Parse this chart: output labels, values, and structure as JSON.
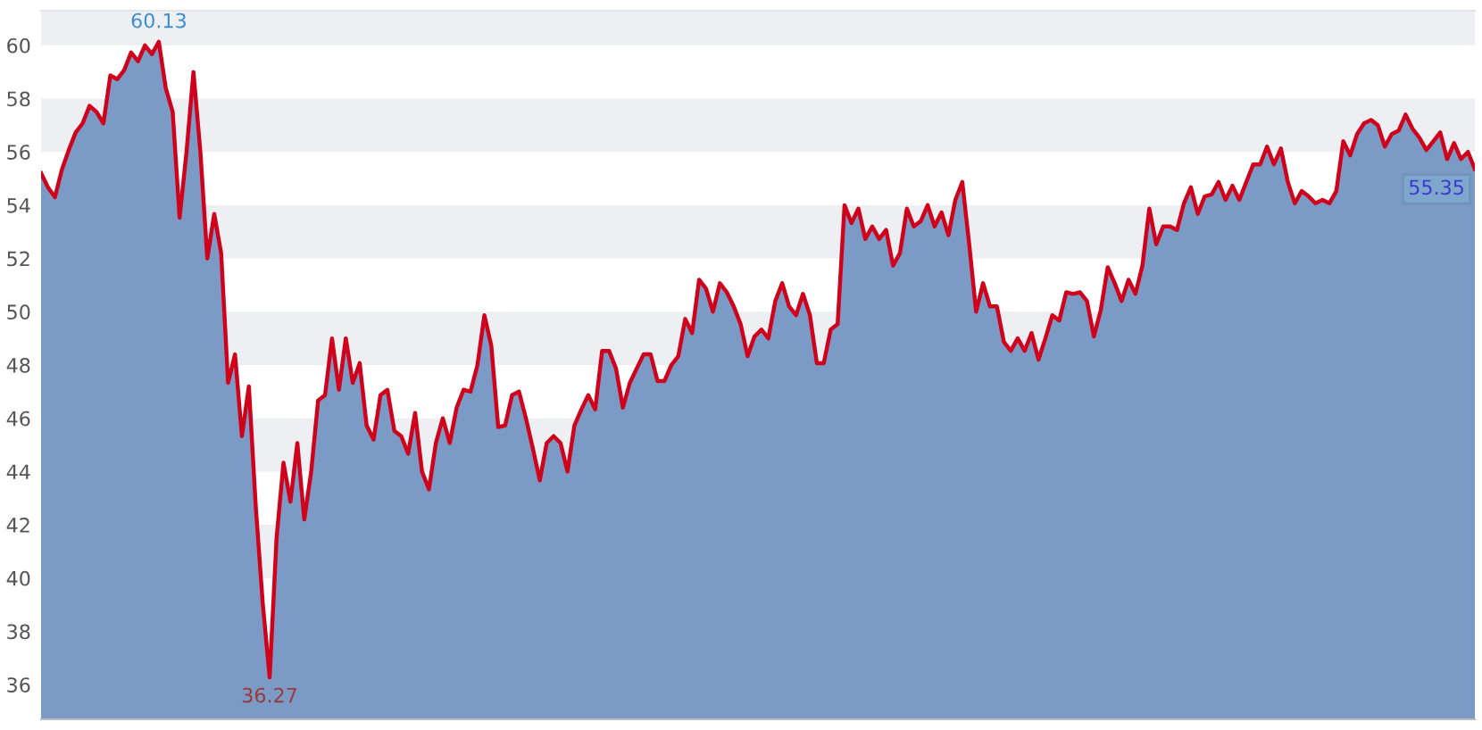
{
  "chart_data": {
    "type": "area",
    "ylim": [
      34.7,
      61.3
    ],
    "yticks": [
      36,
      38,
      40,
      42,
      44,
      46,
      48,
      50,
      52,
      54,
      56,
      58,
      60
    ],
    "tick_labels": "y",
    "grid": false,
    "legend": false,
    "marker": "none",
    "line_style": "solid",
    "categories": [
      null,
      null,
      null,
      null,
      null,
      null,
      null,
      null,
      null,
      null,
      null,
      null,
      null,
      null,
      null,
      null,
      null,
      null,
      null,
      null,
      null,
      null,
      null,
      null,
      null,
      null,
      null,
      null,
      null,
      null,
      null,
      null,
      null,
      null,
      null,
      null,
      null,
      null,
      null,
      null,
      null,
      null,
      null,
      null,
      null,
      null,
      null,
      null,
      null,
      null,
      null,
      null,
      null,
      null,
      null,
      null,
      null,
      null,
      null,
      null,
      null,
      null,
      null,
      null,
      null,
      null,
      null,
      null,
      null,
      null,
      null,
      null,
      null,
      null,
      null,
      null,
      null,
      null,
      null,
      null,
      null,
      null,
      null,
      null,
      null,
      null,
      null,
      null,
      null,
      null,
      null,
      null,
      null,
      null,
      null,
      null,
      null,
      null,
      null,
      null,
      null,
      null,
      null,
      null,
      null,
      null,
      null,
      null,
      null,
      null,
      null,
      null,
      null,
      null,
      null,
      null,
      null,
      null,
      null,
      null,
      null,
      null,
      null,
      null,
      null,
      null,
      null,
      null,
      null,
      null,
      null,
      null,
      null,
      null,
      null,
      null,
      null,
      null,
      null,
      null,
      null,
      null,
      null,
      null,
      null,
      null,
      null,
      null,
      null,
      null,
      null,
      null,
      null,
      null,
      null,
      null,
      null,
      null,
      null,
      null,
      null,
      null,
      null,
      null,
      null,
      null,
      null,
      null,
      null,
      null,
      null,
      null,
      null,
      null,
      null,
      null,
      null,
      null,
      null,
      null,
      null,
      null,
      null,
      null,
      null,
      null,
      null,
      null,
      null,
      null,
      null,
      null,
      null,
      null,
      null,
      null,
      null,
      null,
      null,
      null,
      null,
      null,
      null,
      null,
      null,
      null,
      null,
      null
    ],
    "series": [
      {
        "color": "#7b9bc6",
        "values": [
          55.2,
          54.67,
          54.3,
          55.33,
          56.07,
          56.73,
          57.07,
          57.73,
          57.5,
          57.07,
          58.87,
          58.73,
          59.07,
          59.73,
          59.4,
          60.0,
          59.67,
          60.13,
          58.4,
          57.5,
          53.53,
          56.0,
          59.0,
          56.0,
          52.0,
          53.67,
          52.2,
          47.33,
          48.4,
          45.33,
          47.2,
          42.67,
          39.07,
          36.27,
          41.5,
          44.33,
          42.87,
          45.07,
          42.2,
          44.0,
          46.67,
          46.87,
          49.0,
          47.07,
          49.0,
          47.33,
          48.07,
          45.73,
          45.2,
          46.87,
          47.07,
          45.53,
          45.33,
          44.67,
          46.2,
          44.0,
          43.33,
          45.07,
          46.0,
          45.07,
          46.4,
          47.07,
          47.0,
          48.0,
          49.87,
          48.73,
          45.67,
          45.73,
          46.87,
          47.0,
          46.0,
          44.87,
          43.67,
          45.07,
          45.33,
          45.07,
          44.0,
          45.73,
          46.33,
          46.87,
          46.33,
          48.53,
          48.53,
          47.87,
          46.4,
          47.33,
          47.87,
          48.4,
          48.4,
          47.4,
          47.4,
          48.0,
          48.33,
          49.73,
          49.2,
          51.2,
          50.87,
          50.0,
          51.07,
          50.73,
          50.2,
          49.53,
          48.33,
          49.07,
          49.33,
          49.0,
          50.4,
          51.07,
          50.2,
          49.87,
          50.67,
          49.87,
          48.07,
          48.07,
          49.33,
          49.53,
          54.0,
          53.33,
          53.87,
          52.73,
          53.2,
          52.73,
          53.07,
          51.73,
          52.2,
          53.87,
          53.2,
          53.4,
          54.0,
          53.2,
          53.73,
          52.87,
          54.2,
          54.87,
          52.53,
          50.0,
          51.07,
          50.2,
          50.2,
          48.87,
          48.53,
          49.0,
          48.53,
          49.2,
          48.2,
          49.0,
          49.87,
          49.67,
          50.73,
          50.67,
          50.73,
          50.4,
          49.07,
          50.07,
          51.67,
          51.07,
          50.4,
          51.2,
          50.67,
          51.73,
          53.87,
          52.53,
          53.2,
          53.2,
          53.07,
          54.07,
          54.67,
          53.67,
          54.33,
          54.4,
          54.87,
          54.2,
          54.73,
          54.2,
          54.87,
          55.53,
          55.53,
          56.2,
          55.53,
          56.13,
          54.87,
          54.07,
          54.53,
          54.33,
          54.07,
          54.2,
          54.07,
          54.53,
          56.4,
          55.87,
          56.67,
          57.07,
          57.2,
          57.0,
          56.2,
          56.67,
          56.8,
          57.4,
          56.87,
          56.53,
          56.07,
          56.4,
          56.73,
          55.73,
          56.33,
          55.73,
          56.0,
          55.35
        ]
      },
      {
        "type": "line",
        "color": "#d0021b",
        "values": [
          55.2,
          54.67,
          54.3,
          55.33,
          56.07,
          56.73,
          57.07,
          57.73,
          57.5,
          57.07,
          58.87,
          58.73,
          59.07,
          59.73,
          59.4,
          60.0,
          59.67,
          60.13,
          58.4,
          57.5,
          53.53,
          56.0,
          59.0,
          56.0,
          52.0,
          53.67,
          52.2,
          47.33,
          48.4,
          45.33,
          47.2,
          42.67,
          39.07,
          36.27,
          41.5,
          44.33,
          42.87,
          45.07,
          42.2,
          44.0,
          46.67,
          46.87,
          49.0,
          47.07,
          49.0,
          47.33,
          48.07,
          45.73,
          45.2,
          46.87,
          47.07,
          45.53,
          45.33,
          44.67,
          46.2,
          44.0,
          43.33,
          45.07,
          46.0,
          45.07,
          46.4,
          47.07,
          47.0,
          48.0,
          49.87,
          48.73,
          45.67,
          45.73,
          46.87,
          47.0,
          46.0,
          44.87,
          43.67,
          45.07,
          45.33,
          45.07,
          44.0,
          45.73,
          46.33,
          46.87,
          46.33,
          48.53,
          48.53,
          47.87,
          46.4,
          47.33,
          47.87,
          48.4,
          48.4,
          47.4,
          47.4,
          48.0,
          48.33,
          49.73,
          49.2,
          51.2,
          50.87,
          50.0,
          51.07,
          50.73,
          50.2,
          49.53,
          48.33,
          49.07,
          49.33,
          49.0,
          50.4,
          51.07,
          50.2,
          49.87,
          50.67,
          49.87,
          48.07,
          48.07,
          49.33,
          49.53,
          54.0,
          53.33,
          53.87,
          52.73,
          53.2,
          52.73,
          53.07,
          51.73,
          52.2,
          53.87,
          53.2,
          53.4,
          54.0,
          53.2,
          53.73,
          52.87,
          54.2,
          54.87,
          52.53,
          50.0,
          51.07,
          50.2,
          50.2,
          48.87,
          48.53,
          49.0,
          48.53,
          49.2,
          48.2,
          49.0,
          49.87,
          49.67,
          50.73,
          50.67,
          50.73,
          50.4,
          49.07,
          50.07,
          51.67,
          51.07,
          50.4,
          51.2,
          50.67,
          51.73,
          53.87,
          52.53,
          53.2,
          53.2,
          53.07,
          54.07,
          54.67,
          53.67,
          54.33,
          54.4,
          54.87,
          54.2,
          54.73,
          54.2,
          54.87,
          55.53,
          55.53,
          56.2,
          55.53,
          56.13,
          54.87,
          54.07,
          54.53,
          54.33,
          54.07,
          54.2,
          54.07,
          54.53,
          56.4,
          55.87,
          56.67,
          57.07,
          57.2,
          57.0,
          56.2,
          56.67,
          56.8,
          57.4,
          56.87,
          56.53,
          56.07,
          56.4,
          56.73,
          55.73,
          56.33,
          55.73,
          56.0,
          55.35
        ]
      }
    ],
    "bands": [
      {
        "axis": "y",
        "from": 60,
        "to": 61.3,
        "color": "#eeeff2"
      },
      {
        "axis": "y",
        "from": 56,
        "to": 58,
        "color": "#eeeff2"
      },
      {
        "axis": "y",
        "from": 52,
        "to": 54,
        "color": "#eeeff2"
      },
      {
        "axis": "y",
        "from": 48,
        "to": 50,
        "color": "#eeeff2"
      },
      {
        "axis": "y",
        "from": 44,
        "to": 46,
        "color": "#eeeff2"
      },
      {
        "axis": "y",
        "from": 40,
        "to": 42,
        "color": "#eeeff2"
      },
      {
        "axis": "y",
        "from": 36,
        "to": 38,
        "color": "#eeeff2"
      }
    ],
    "annotations": [
      {
        "text": "60.13",
        "y": 60.13
      },
      {
        "text": "36.27",
        "y": 36.27
      },
      "55.35"
    ]
  }
}
